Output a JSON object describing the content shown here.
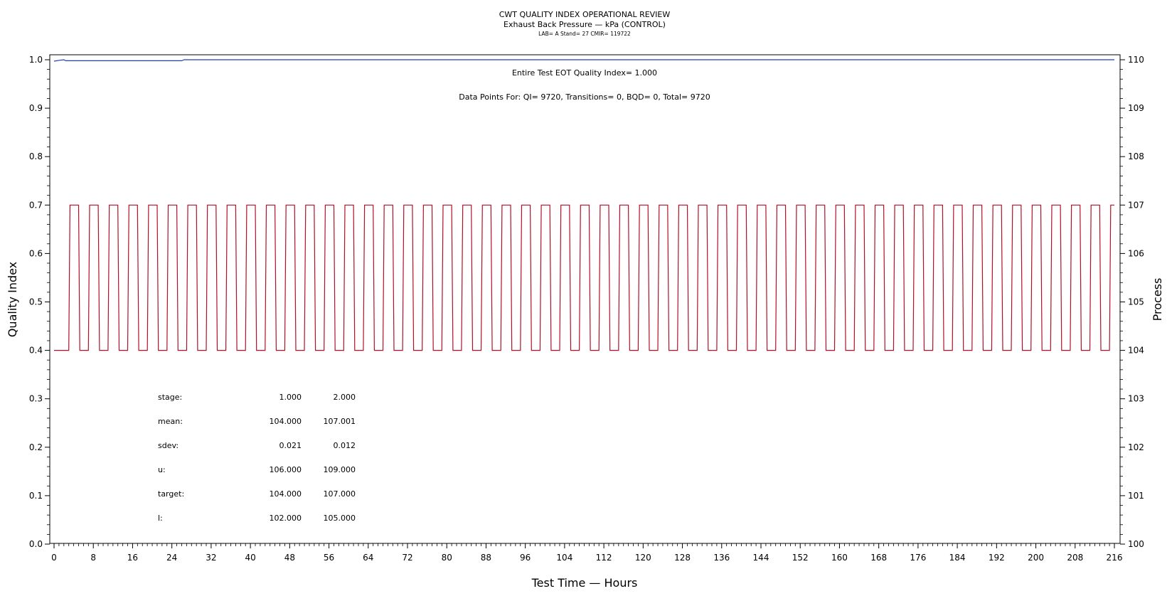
{
  "chart_data": {
    "type": "line",
    "title": "CWT QUALITY INDEX OPERATIONAL REVIEW",
    "subtitle": "Exhaust Back Pressure — kPa (CONTROL)",
    "subsubtitle": "LAB= A Stand= 27 CMIR= 119722",
    "xlabel": "Test Time — Hours",
    "ylabel": "Quality Index",
    "y2label": "Process",
    "xlim": [
      0,
      216
    ],
    "ylim": [
      0.0,
      1.0
    ],
    "y2lim": [
      100,
      110
    ],
    "xticks": [
      "0",
      "8",
      "16",
      "24",
      "32",
      "40",
      "48",
      "56",
      "64",
      "72",
      "80",
      "88",
      "96",
      "104",
      "112",
      "120",
      "128",
      "136",
      "144",
      "152",
      "160",
      "168",
      "176",
      "184",
      "192",
      "200",
      "208",
      "216"
    ],
    "yticks": [
      "0.0",
      "0.1",
      "0.2",
      "0.3",
      "0.4",
      "0.5",
      "0.6",
      "0.7",
      "0.8",
      "0.9",
      "1.0"
    ],
    "y2ticks": [
      "100",
      "101",
      "102",
      "103",
      "104",
      "105",
      "106",
      "107",
      "108",
      "109",
      "110"
    ],
    "grid": false,
    "annotations": [
      "Entire Test EOT Quality Index=   1.000",
      "Data Points For: QI=  9720, Transitions=     0, BQD=     0, Total=  9720"
    ],
    "series": [
      {
        "axis": "left",
        "color": "#1f3fb0",
        "x": [
          0,
          1.2,
          2.0,
          2.4,
          26.0,
          26.5,
          216
        ],
        "y": [
          0.997,
          0.999,
          1.0,
          0.998,
          0.998,
          1.0,
          1.0
        ]
      },
      {
        "axis": "right",
        "color": "#b01028",
        "pattern": "alternating stage 1 / stage 2 process steps",
        "stage1_level": 104.0,
        "stage2_level": 107.0,
        "cycle_hours": 4.0,
        "first_rise_hour": 3.0,
        "x_start": 0,
        "x_end": 216
      }
    ],
    "stats_table": {
      "rows": [
        {
          "label": "stage:",
          "c1": "1.000",
          "c2": "2.000"
        },
        {
          "label": "mean:",
          "c1": "104.000",
          "c2": "107.001"
        },
        {
          "label": "sdev:",
          "c1": "0.021",
          "c2": "0.012"
        },
        {
          "label": "u:",
          "c1": "106.000",
          "c2": "109.000"
        },
        {
          "label": "target:",
          "c1": "104.000",
          "c2": "107.000"
        },
        {
          "label": "l:",
          "c1": "102.000",
          "c2": "105.000"
        }
      ]
    }
  }
}
